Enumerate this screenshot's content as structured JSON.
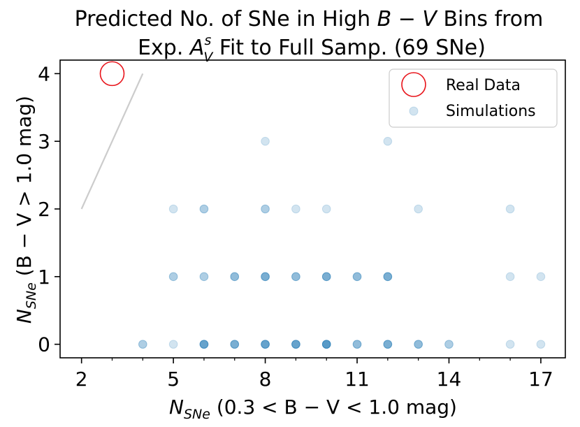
{
  "chart_data": {
    "type": "scatter",
    "title_line1_prefix": "Predicted No. of SNe in High ",
    "title_line1_math": "B − V",
    "title_line1_suffix": " Bins from",
    "title_line2_prefix": "Exp. ",
    "title_line2_math_base": "A",
    "title_line2_math_sup": "s",
    "title_line2_math_sub": "V",
    "title_line2_suffix": " Fit to Full Samp. (69 SNe)",
    "xlabel_prefix": "N",
    "xlabel_sub": "SNe",
    "xlabel_suffix": " (0.3 < B − V < 1.0 mag)",
    "ylabel_prefix": "N",
    "ylabel_sub": "SNe",
    "ylabel_suffix": " (B − V > 1.0 mag)",
    "xlim": [
      1.3,
      17.8
    ],
    "ylim": [
      -0.2,
      4.2
    ],
    "xticks": [
      "2",
      "5",
      "8",
      "11",
      "14",
      "17"
    ],
    "yticks": [
      "0",
      "1",
      "2",
      "3",
      "4"
    ],
    "real_data": {
      "name": "Real Data",
      "x": 3,
      "y": 4,
      "color": "#e8141b"
    },
    "reference_line": {
      "x": [
        2,
        4
      ],
      "y": [
        2,
        4
      ],
      "color": "#cccccc"
    },
    "simulations": {
      "name": "Simulations",
      "color": "#1f77b4",
      "points": [
        {
          "x": 8,
          "y": 3,
          "n": 1
        },
        {
          "x": 12,
          "y": 3,
          "n": 1
        },
        {
          "x": 5,
          "y": 2,
          "n": 1
        },
        {
          "x": 6,
          "y": 2,
          "n": 2
        },
        {
          "x": 8,
          "y": 2,
          "n": 2
        },
        {
          "x": 9,
          "y": 2,
          "n": 1
        },
        {
          "x": 10,
          "y": 2,
          "n": 1
        },
        {
          "x": 13,
          "y": 2,
          "n": 1
        },
        {
          "x": 16,
          "y": 2,
          "n": 1
        },
        {
          "x": 5,
          "y": 1,
          "n": 2
        },
        {
          "x": 6,
          "y": 1,
          "n": 2
        },
        {
          "x": 7,
          "y": 1,
          "n": 3
        },
        {
          "x": 8,
          "y": 1,
          "n": 4
        },
        {
          "x": 9,
          "y": 1,
          "n": 3
        },
        {
          "x": 10,
          "y": 1,
          "n": 4
        },
        {
          "x": 11,
          "y": 1,
          "n": 3
        },
        {
          "x": 12,
          "y": 1,
          "n": 4
        },
        {
          "x": 16,
          "y": 1,
          "n": 1
        },
        {
          "x": 17,
          "y": 1,
          "n": 1
        },
        {
          "x": 4,
          "y": 0,
          "n": 2
        },
        {
          "x": 5,
          "y": 0,
          "n": 1
        },
        {
          "x": 6,
          "y": 0,
          "n": 5
        },
        {
          "x": 7,
          "y": 0,
          "n": 4
        },
        {
          "x": 8,
          "y": 0,
          "n": 5
        },
        {
          "x": 9,
          "y": 0,
          "n": 5
        },
        {
          "x": 10,
          "y": 0,
          "n": 6
        },
        {
          "x": 11,
          "y": 0,
          "n": 3
        },
        {
          "x": 12,
          "y": 0,
          "n": 4
        },
        {
          "x": 13,
          "y": 0,
          "n": 3
        },
        {
          "x": 14,
          "y": 0,
          "n": 2
        },
        {
          "x": 16,
          "y": 0,
          "n": 1
        },
        {
          "x": 17,
          "y": 0,
          "n": 1
        }
      ]
    },
    "legend_location": "top-right",
    "grid": false
  }
}
